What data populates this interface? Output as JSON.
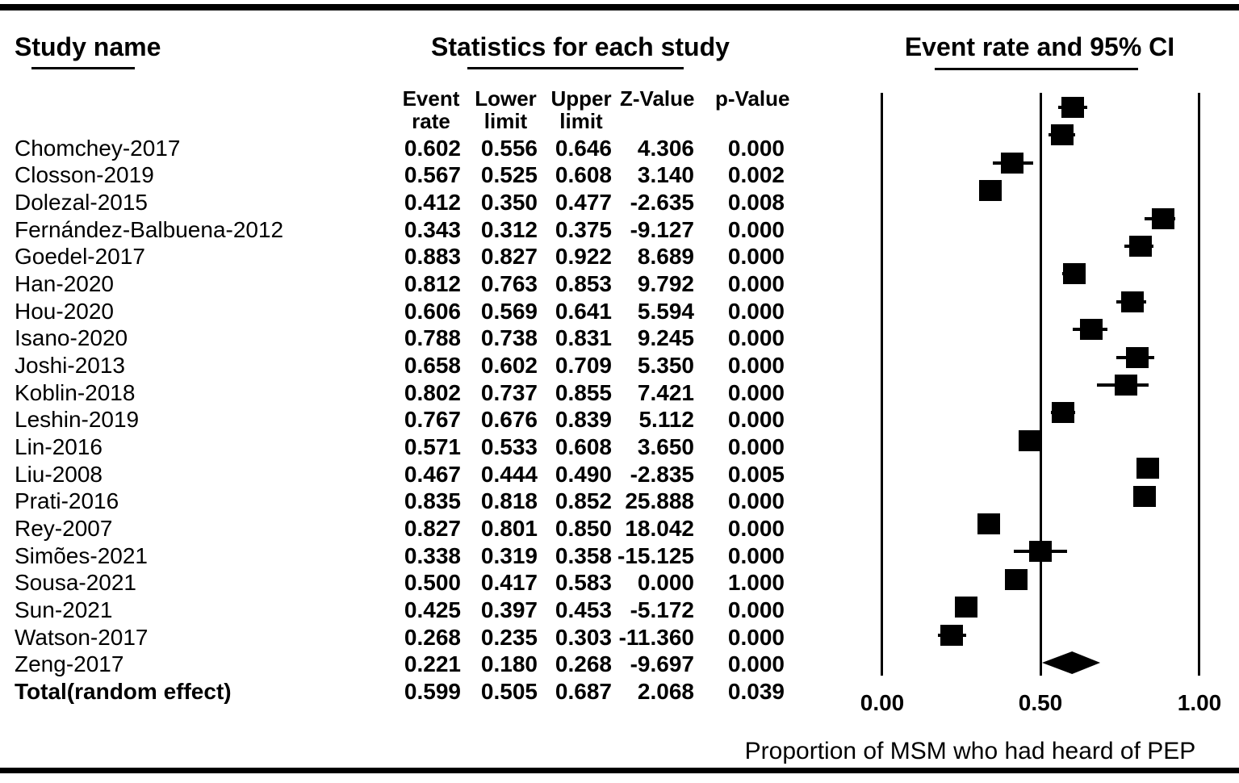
{
  "figure": {
    "study_col_title": "Study name",
    "stats_col_title": "Statistics for each study",
    "plot_col_title": "Event rate and 95% CI"
  },
  "stat_columns": [
    {
      "line1": "Event",
      "line2": "rate"
    },
    {
      "line1": "Lower",
      "line2": "limit"
    },
    {
      "line1": "Upper",
      "line2": "limit"
    },
    {
      "line1": "Z-Value",
      "line2": ""
    },
    {
      "line1": "p-Value",
      "line2": ""
    }
  ],
  "colors": {
    "ink": "#000000",
    "background": "#ffffff"
  },
  "chart_data": {
    "type": "forest",
    "title": "Event rate and 95% CI",
    "x_axis": {
      "label": "Proportion of MSM who had heard of PEP",
      "ticks": [
        "0.00",
        "0.50",
        "1.00"
      ],
      "tick_values": [
        0,
        0.5,
        1
      ],
      "range": [
        0,
        1
      ],
      "gridlines_at": [
        0,
        0.5,
        1
      ]
    },
    "marker": "filled-square",
    "summary_marker": "filled-diamond",
    "studies": [
      {
        "name": "Chomchey-2017",
        "event": "0.602",
        "lower": "0.556",
        "upper": "0.646",
        "z": "4.306",
        "p": "0.000"
      },
      {
        "name": "Closson-2019",
        "event": "0.567",
        "lower": "0.525",
        "upper": "0.608",
        "z": "3.140",
        "p": "0.002"
      },
      {
        "name": "Dolezal-2015",
        "event": "0.412",
        "lower": "0.350",
        "upper": "0.477",
        "z": "-2.635",
        "p": "0.008"
      },
      {
        "name": "Fernández-Balbuena-2012",
        "event": "0.343",
        "lower": "0.312",
        "upper": "0.375",
        "z": "-9.127",
        "p": "0.000"
      },
      {
        "name": "Goedel-2017",
        "event": "0.883",
        "lower": "0.827",
        "upper": "0.922",
        "z": "8.689",
        "p": "0.000"
      },
      {
        "name": "Han-2020",
        "event": "0.812",
        "lower": "0.763",
        "upper": "0.853",
        "z": "9.792",
        "p": "0.000"
      },
      {
        "name": "Hou-2020",
        "event": "0.606",
        "lower": "0.569",
        "upper": "0.641",
        "z": "5.594",
        "p": "0.000"
      },
      {
        "name": "Isano-2020",
        "event": "0.788",
        "lower": "0.738",
        "upper": "0.831",
        "z": "9.245",
        "p": "0.000"
      },
      {
        "name": "Joshi-2013",
        "event": "0.658",
        "lower": "0.602",
        "upper": "0.709",
        "z": "5.350",
        "p": "0.000"
      },
      {
        "name": "Koblin-2018",
        "event": "0.802",
        "lower": "0.737",
        "upper": "0.855",
        "z": "7.421",
        "p": "0.000"
      },
      {
        "name": "Leshin-2019",
        "event": "0.767",
        "lower": "0.676",
        "upper": "0.839",
        "z": "5.112",
        "p": "0.000"
      },
      {
        "name": "Lin-2016",
        "event": "0.571",
        "lower": "0.533",
        "upper": "0.608",
        "z": "3.650",
        "p": "0.000"
      },
      {
        "name": "Liu-2008",
        "event": "0.467",
        "lower": "0.444",
        "upper": "0.490",
        "z": "-2.835",
        "p": "0.005"
      },
      {
        "name": "Prati-2016",
        "event": "0.835",
        "lower": "0.818",
        "upper": "0.852",
        "z": "25.888",
        "p": "0.000"
      },
      {
        "name": "Rey-2007",
        "event": "0.827",
        "lower": "0.801",
        "upper": "0.850",
        "z": "18.042",
        "p": "0.000"
      },
      {
        "name": "Simões-2021",
        "event": "0.338",
        "lower": "0.319",
        "upper": "0.358",
        "z": "-15.125",
        "p": "0.000"
      },
      {
        "name": "Sousa-2021",
        "event": "0.500",
        "lower": "0.417",
        "upper": "0.583",
        "z": "0.000",
        "p": "1.000"
      },
      {
        "name": "Sun-2021",
        "event": "0.425",
        "lower": "0.397",
        "upper": "0.453",
        "z": "-5.172",
        "p": "0.000"
      },
      {
        "name": "Watson-2017",
        "event": "0.268",
        "lower": "0.235",
        "upper": "0.303",
        "z": "-11.360",
        "p": "0.000"
      },
      {
        "name": "Zeng-2017",
        "event": "0.221",
        "lower": "0.180",
        "upper": "0.268",
        "z": "-9.697",
        "p": "0.000"
      }
    ],
    "summary": {
      "name": "Total(random effect)",
      "event": "0.599",
      "lower": "0.505",
      "upper": "0.687",
      "z": "2.068",
      "p": "0.039"
    }
  }
}
